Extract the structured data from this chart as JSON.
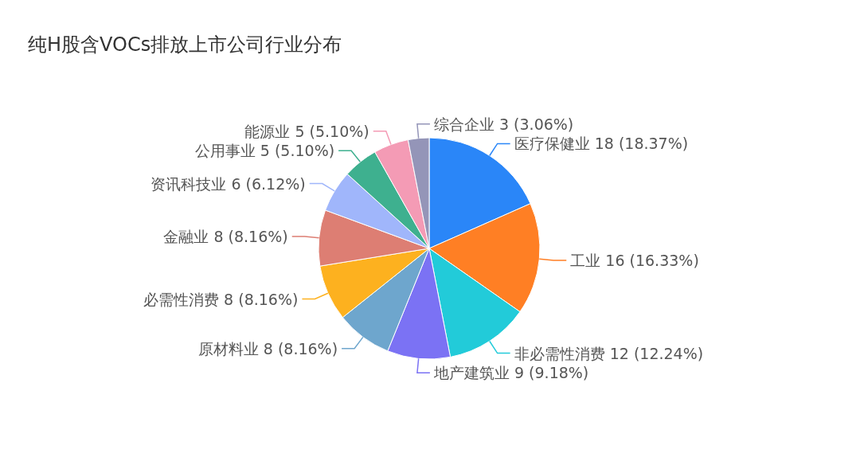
{
  "chart_data": {
    "type": "pie",
    "title": "纯H股含VOCs排放上市公司行业分布",
    "categories": [
      "医疗保健业",
      "工业",
      "非必需性消费",
      "地产建筑业",
      "原材料业",
      "必需性消费",
      "金融业",
      "资讯科技业",
      "公用事业",
      "能源业",
      "综合企业"
    ],
    "values": [
      18,
      16,
      12,
      9,
      8,
      8,
      8,
      6,
      5,
      5,
      3
    ],
    "value_labels": [
      "18 (18.37%)",
      "16 (16.33%)",
      "12 (12.24%)",
      "9 (9.18%)",
      "8 (8.16%)",
      "8 (8.16%)",
      "8 (8.16%)",
      "6 (6.12%)",
      "5 (5.10%)",
      "5 (5.10%)",
      "3 (3.06%)"
    ],
    "colors": [
      "#2a86f8",
      "#ff7f24",
      "#22cbd9",
      "#7b72f4",
      "#6ea6cd",
      "#fdb11f",
      "#dd7e73",
      "#a0b6fb",
      "#3eb08f",
      "#f49bb5",
      "#9495b8"
    ]
  }
}
